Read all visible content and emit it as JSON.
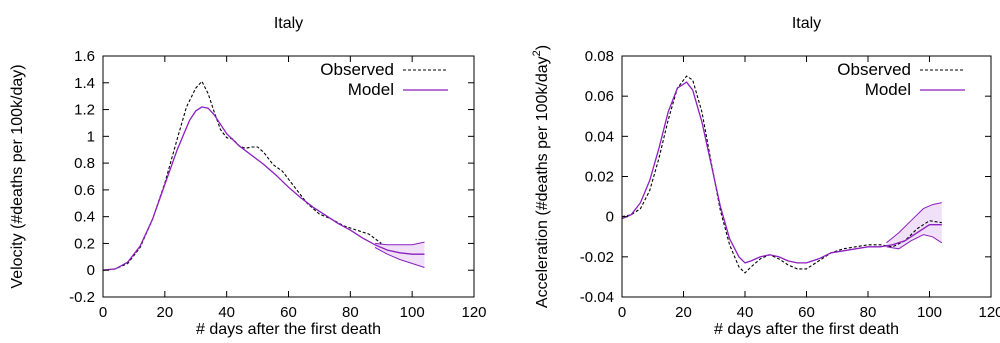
{
  "chart_data": [
    {
      "type": "line",
      "title": "Italy",
      "xlabel": "# days after the first death",
      "ylabel": "Velocity (#deaths per 100k/day)",
      "xlim": [
        0,
        120
      ],
      "ylim": [
        -0.2,
        1.6
      ],
      "xticks": [
        0,
        20,
        40,
        60,
        80,
        100,
        120
      ],
      "yticks": [
        -0.2,
        0,
        0.2,
        0.4,
        0.6,
        0.8,
        1,
        1.2,
        1.4,
        1.6
      ],
      "ytick_labels": [
        "-0.2",
        "0",
        "0.2",
        "0.4",
        "0.6",
        "0.8",
        "1",
        "1.2",
        "1.4",
        "1.6"
      ],
      "legend_position": "top-right",
      "series": [
        {
          "name": "Observed",
          "style": "dashed",
          "color": "#000000",
          "x": [
            0,
            4,
            8,
            12,
            16,
            20,
            24,
            27,
            30,
            32,
            34,
            36,
            38,
            40,
            42,
            44,
            46,
            48,
            50,
            52,
            55,
            58,
            62,
            66,
            70,
            74,
            78,
            82,
            86,
            90
          ],
          "y": [
            0,
            0.01,
            0.05,
            0.17,
            0.38,
            0.65,
            0.98,
            1.22,
            1.36,
            1.41,
            1.32,
            1.18,
            1.05,
            0.99,
            0.98,
            0.93,
            0.91,
            0.92,
            0.92,
            0.88,
            0.79,
            0.74,
            0.62,
            0.5,
            0.42,
            0.38,
            0.33,
            0.3,
            0.27,
            0.2
          ]
        },
        {
          "name": "Model",
          "style": "solid",
          "color": "#8b1fbf",
          "x": [
            0,
            4,
            8,
            12,
            16,
            20,
            24,
            28,
            30,
            32,
            34,
            36,
            38,
            40,
            44,
            48,
            52,
            56,
            60,
            64,
            68,
            72,
            76,
            80,
            84,
            88,
            92,
            96,
            100,
            104
          ],
          "y": [
            0,
            0.01,
            0.06,
            0.18,
            0.38,
            0.64,
            0.9,
            1.12,
            1.19,
            1.22,
            1.21,
            1.16,
            1.09,
            1.02,
            0.93,
            0.86,
            0.79,
            0.71,
            0.62,
            0.54,
            0.47,
            0.41,
            0.35,
            0.3,
            0.24,
            0.19,
            0.15,
            0.13,
            0.12,
            0.12
          ]
        }
      ],
      "band": {
        "x": [
          88,
          92,
          96,
          100,
          104
        ],
        "upper": [
          0.2,
          0.19,
          0.19,
          0.19,
          0.21
        ],
        "lower": [
          0.17,
          0.12,
          0.08,
          0.05,
          0.02
        ]
      }
    },
    {
      "type": "line",
      "title": "Italy",
      "xlabel": "# days after the first death",
      "ylabel": "Acceleration (#deaths per 100k/day",
      "ylabel_superscript": "2",
      "ylabel_close": ")",
      "xlim": [
        0,
        120
      ],
      "ylim": [
        -0.04,
        0.08
      ],
      "xticks": [
        0,
        20,
        40,
        60,
        80,
        100,
        120
      ],
      "yticks": [
        -0.04,
        -0.02,
        0,
        0.02,
        0.04,
        0.06,
        0.08
      ],
      "ytick_labels": [
        "-0.04",
        "-0.02",
        "0",
        "0.02",
        "0.04",
        "0.06",
        "0.08"
      ],
      "legend_position": "top-right",
      "series": [
        {
          "name": "Observed",
          "style": "dashed",
          "color": "#000000",
          "x": [
            0,
            3,
            6,
            9,
            12,
            15,
            18,
            21,
            23,
            26,
            29,
            32,
            35,
            38,
            40,
            42,
            45,
            48,
            51,
            54,
            57,
            60,
            64,
            68,
            72,
            76,
            80,
            84,
            88,
            92,
            96,
            100,
            104
          ],
          "y": [
            0,
            0.001,
            0.004,
            0.013,
            0.029,
            0.048,
            0.064,
            0.07,
            0.068,
            0.052,
            0.027,
            0.003,
            -0.014,
            -0.025,
            -0.028,
            -0.025,
            -0.021,
            -0.019,
            -0.021,
            -0.024,
            -0.026,
            -0.026,
            -0.022,
            -0.018,
            -0.016,
            -0.015,
            -0.014,
            -0.014,
            -0.015,
            -0.012,
            -0.006,
            -0.002,
            -0.003
          ]
        },
        {
          "name": "Model",
          "style": "solid",
          "color": "#8b1fbf",
          "x": [
            0,
            3,
            6,
            9,
            12,
            15,
            18,
            21,
            23,
            26,
            29,
            32,
            35,
            38,
            40,
            42,
            45,
            48,
            51,
            54,
            57,
            60,
            64,
            68,
            72,
            76,
            80,
            84,
            88,
            92,
            96,
            100,
            104
          ],
          "y": [
            -0.001,
            0.001,
            0.007,
            0.018,
            0.034,
            0.052,
            0.064,
            0.067,
            0.063,
            0.047,
            0.026,
            0.005,
            -0.011,
            -0.02,
            -0.023,
            -0.022,
            -0.02,
            -0.019,
            -0.02,
            -0.022,
            -0.023,
            -0.023,
            -0.021,
            -0.018,
            -0.017,
            -0.016,
            -0.015,
            -0.015,
            -0.014,
            -0.012,
            -0.008,
            -0.004,
            -0.004
          ]
        }
      ],
      "band": {
        "x": [
          86,
          90,
          94,
          98,
          101,
          104
        ],
        "upper": [
          -0.013,
          -0.008,
          -0.002,
          0.004,
          0.006,
          0.007
        ],
        "lower": [
          -0.015,
          -0.016,
          -0.012,
          -0.009,
          -0.01,
          -0.013
        ]
      }
    }
  ]
}
